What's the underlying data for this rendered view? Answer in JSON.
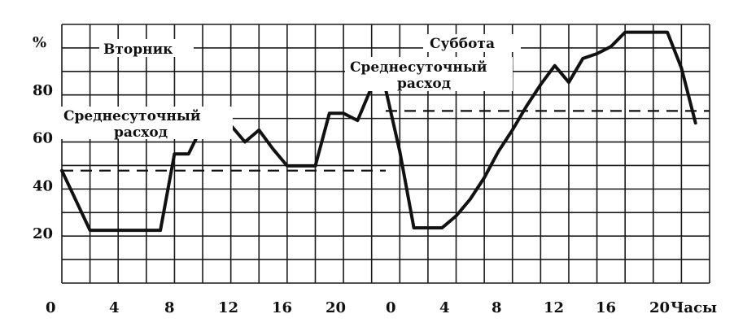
{
  "chart_data": {
    "type": "line",
    "y_unit_label": "%",
    "x_unit_label": "Часы",
    "ylim": [
      0,
      100
    ],
    "y_ticks": [
      20,
      40,
      60,
      80
    ],
    "x_tick_labels": [
      "0",
      "4",
      "8",
      "12",
      "16",
      "20",
      "0",
      "4",
      "8",
      "12",
      "16",
      "20"
    ],
    "grid": true,
    "days": [
      {
        "label": "Вторник",
        "average_label_line1": "Среднесуточный",
        "average_label_line2": "расход",
        "average": 46,
        "x": [
          0,
          2,
          7,
          8,
          9,
          10,
          11,
          12,
          13,
          14,
          15,
          16,
          17,
          18
        ],
        "y": [
          46,
          21,
          21,
          53,
          53,
          65,
          61,
          65,
          58,
          63,
          55,
          48,
          48,
          48
        ]
      },
      {
        "label": "Суббота",
        "average_label_line1": "Среднесуточный",
        "average_label_line2": "расход",
        "average": 71,
        "x": [
          18,
          19,
          20,
          21,
          22,
          23,
          24,
          25,
          26,
          27,
          28,
          29,
          30,
          31,
          32,
          33,
          34,
          35,
          36,
          37,
          38,
          39,
          40,
          41,
          42,
          43,
          44,
          45
        ],
        "y": [
          48,
          70,
          70,
          67,
          81,
          80,
          54,
          22,
          22,
          22,
          27,
          34,
          43,
          54,
          63,
          73,
          82,
          90,
          83,
          93,
          95,
          98,
          104,
          104,
          104,
          104,
          89,
          66
        ]
      }
    ]
  }
}
